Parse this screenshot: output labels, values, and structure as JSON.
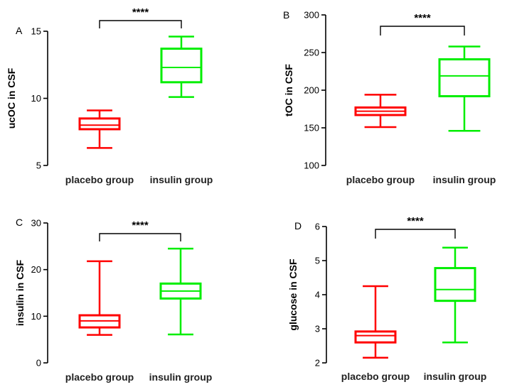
{
  "chart_data": [
    {
      "panel": "A",
      "type": "box",
      "ylabel": "ucOC in CSF",
      "ylim": [
        5,
        15
      ],
      "yticks": [
        5,
        10,
        15
      ],
      "categories": [
        "placebo group",
        "insulin group"
      ],
      "colors": [
        "#ff0000",
        "#00ee00"
      ],
      "boxes": [
        {
          "min": 6.3,
          "q1": 7.7,
          "median": 8.0,
          "q3": 8.5,
          "max": 9.1
        },
        {
          "min": 10.1,
          "q1": 11.2,
          "median": 12.3,
          "q3": 13.7,
          "max": 14.6
        }
      ],
      "significance": "****"
    },
    {
      "panel": "B",
      "type": "box",
      "ylabel": "tOC in CSF",
      "ylim": [
        100,
        300
      ],
      "yticks": [
        100,
        150,
        200,
        250,
        300
      ],
      "categories": [
        "placebo group",
        "insulin group"
      ],
      "colors": [
        "#ff0000",
        "#00ee00"
      ],
      "boxes": [
        {
          "min": 151,
          "q1": 167,
          "median": 172,
          "q3": 177,
          "max": 194
        },
        {
          "min": 146,
          "q1": 192,
          "median": 219,
          "q3": 241,
          "max": 258
        }
      ],
      "significance": "****"
    },
    {
      "panel": "C",
      "type": "box",
      "ylabel": "insulin in CSF",
      "ylim": [
        0,
        30
      ],
      "yticks": [
        0,
        10,
        20,
        30
      ],
      "categories": [
        "placebo group",
        "insulin group"
      ],
      "colors": [
        "#ff0000",
        "#00ee00"
      ],
      "boxes": [
        {
          "min": 6.0,
          "q1": 7.6,
          "median": 9.0,
          "q3": 10.2,
          "max": 21.8
        },
        {
          "min": 6.1,
          "q1": 13.8,
          "median": 15.4,
          "q3": 17.0,
          "max": 24.5
        }
      ],
      "significance": "****"
    },
    {
      "panel": "D",
      "type": "box",
      "ylabel": "glucose in CSF",
      "ylim": [
        2,
        6
      ],
      "yticks": [
        2,
        3,
        4,
        5,
        6
      ],
      "categories": [
        "placebo group",
        "insulin group"
      ],
      "colors": [
        "#ff0000",
        "#00ee00"
      ],
      "boxes": [
        {
          "min": 2.15,
          "q1": 2.6,
          "median": 2.8,
          "q3": 2.92,
          "max": 4.25
        },
        {
          "min": 2.6,
          "q1": 3.82,
          "median": 4.15,
          "q3": 4.78,
          "max": 5.38
        }
      ],
      "significance": "****"
    }
  ]
}
